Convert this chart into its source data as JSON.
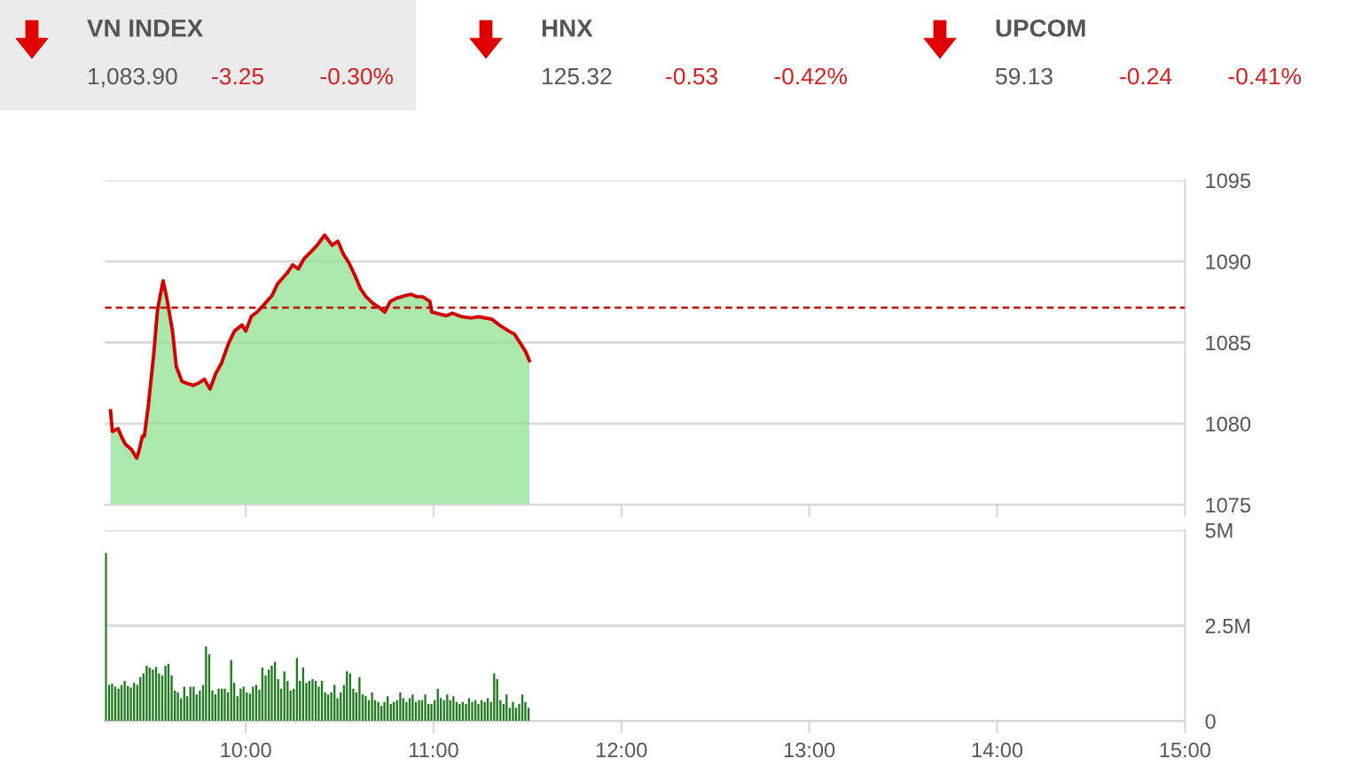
{
  "chart_data": [
    {
      "type": "other",
      "annotations": [
        "VN INDEX",
        "1,083.90",
        "-3.25",
        "-0.30%",
        "HNX",
        "125.32",
        "-0.53",
        "-0.42%",
        "UPCOM",
        "59.13",
        "-0.24",
        "-0.41%"
      ]
    },
    {
      "type": "line",
      "xlim": [
        9.25,
        15
      ],
      "xticks": [
        10,
        11,
        12,
        13,
        14,
        15
      ],
      "ylim": [
        1075,
        1095
      ],
      "yticks": [
        1075,
        1080,
        1085,
        1090,
        1095
      ],
      "grid": "y",
      "tick_labels": "y",
      "x": [
        9.28,
        9.29,
        9.32,
        9.34,
        9.36,
        9.39,
        9.42,
        9.43,
        9.45,
        9.46,
        9.48,
        9.51,
        9.53,
        9.56,
        9.58,
        9.61,
        9.63,
        9.66,
        9.68,
        9.72,
        9.75,
        9.78,
        9.81,
        9.84,
        9.87,
        9.91,
        9.94,
        9.98,
        10.0,
        10.03,
        10.06,
        10.09,
        10.14,
        10.17,
        10.22,
        10.25,
        10.28,
        10.31,
        10.35,
        10.38,
        10.42,
        10.46,
        10.49,
        10.52,
        10.55,
        10.58,
        10.61,
        10.64,
        10.68,
        10.71,
        10.74,
        10.77,
        10.8,
        10.85,
        10.88,
        10.91,
        10.94,
        10.98,
        10.99,
        11.04,
        11.07,
        11.1,
        11.15,
        11.2,
        11.24,
        11.31,
        11.35,
        11.4,
        11.43,
        11.46,
        11.49,
        11.51
      ],
      "series": [
        {
          "type": "area",
          "color": "#8fe08f",
          "values": [
            1080.8,
            1079.52,
            1079.7,
            1079.16,
            1078.72,
            1078.43,
            1077.88,
            1078.25,
            1079.23,
            1079.23,
            1080.98,
            1084.26,
            1086.99,
            1088.81,
            1087.72,
            1085.71,
            1083.53,
            1082.62,
            1082.51,
            1082.36,
            1082.51,
            1082.73,
            1082.14,
            1083.09,
            1083.71,
            1084.99,
            1085.71,
            1086.08,
            1085.71,
            1086.62,
            1086.88,
            1087.24,
            1087.9,
            1088.63,
            1089.28,
            1089.79,
            1089.54,
            1090.16,
            1090.63,
            1091.0,
            1091.62,
            1091.0,
            1091.25,
            1090.45,
            1089.9,
            1089.17,
            1088.34,
            1087.83,
            1087.39,
            1087.17,
            1086.88,
            1087.54,
            1087.72,
            1087.9,
            1087.97,
            1087.83,
            1087.83,
            1087.54,
            1086.88,
            1086.73,
            1086.66,
            1086.81,
            1086.59,
            1086.52,
            1086.59,
            1086.44,
            1086.08,
            1085.71,
            1085.53,
            1084.99,
            1084.44,
            1083.89
          ]
        },
        {
          "type": "line",
          "color": "#d40000",
          "values": [
            1080.8,
            1079.52,
            1079.7,
            1079.16,
            1078.72,
            1078.43,
            1077.88,
            1078.25,
            1079.23,
            1079.23,
            1080.98,
            1084.26,
            1086.99,
            1088.81,
            1087.72,
            1085.71,
            1083.53,
            1082.62,
            1082.51,
            1082.36,
            1082.51,
            1082.73,
            1082.14,
            1083.09,
            1083.71,
            1084.99,
            1085.71,
            1086.08,
            1085.71,
            1086.62,
            1086.88,
            1087.24,
            1087.9,
            1088.63,
            1089.28,
            1089.79,
            1089.54,
            1090.16,
            1090.63,
            1091.0,
            1091.62,
            1091.0,
            1091.25,
            1090.45,
            1089.9,
            1089.17,
            1088.34,
            1087.83,
            1087.39,
            1087.17,
            1086.88,
            1087.54,
            1087.72,
            1087.9,
            1087.97,
            1087.83,
            1087.83,
            1087.54,
            1086.88,
            1086.73,
            1086.66,
            1086.81,
            1086.59,
            1086.52,
            1086.59,
            1086.44,
            1086.08,
            1085.71,
            1085.53,
            1084.99,
            1084.44,
            1083.89
          ]
        }
      ],
      "ref_lines": [
        {
          "axis": "y",
          "value": 1087.15,
          "color": "#c00000",
          "line_style": "dashed"
        }
      ]
    },
    {
      "type": "bar",
      "xlim": [
        9.25,
        15
      ],
      "xticks": [
        {
          "value": 10,
          "label": "10:00"
        },
        {
          "value": 11,
          "label": "11:00"
        },
        {
          "value": 12,
          "label": "12:00"
        },
        {
          "value": 13,
          "label": "13:00"
        },
        {
          "value": 14,
          "label": "14:00"
        },
        {
          "value": 15,
          "label": "15:00"
        }
      ],
      "ylim": [
        0,
        5
      ],
      "yticks": [
        0,
        {
          "value": 2.5,
          "label": "2.5M"
        },
        {
          "value": 5,
          "label": "5M"
        }
      ],
      "grid": "y",
      "x": [
        9.25,
        9.267,
        9.283,
        9.3,
        9.317,
        9.333,
        9.35,
        9.367,
        9.383,
        9.4,
        9.417,
        9.433,
        9.45,
        9.467,
        9.483,
        9.5,
        9.517,
        9.533,
        9.55,
        9.567,
        9.583,
        9.6,
        9.617,
        9.633,
        9.65,
        9.667,
        9.683,
        9.7,
        9.717,
        9.733,
        9.75,
        9.767,
        9.783,
        9.8,
        9.817,
        9.833,
        9.85,
        9.867,
        9.883,
        9.9,
        9.917,
        9.933,
        9.95,
        9.967,
        9.983,
        10.0,
        10.017,
        10.033,
        10.05,
        10.067,
        10.083,
        10.1,
        10.117,
        10.133,
        10.15,
        10.167,
        10.183,
        10.2,
        10.217,
        10.233,
        10.25,
        10.267,
        10.283,
        10.3,
        10.317,
        10.333,
        10.35,
        10.367,
        10.383,
        10.4,
        10.417,
        10.433,
        10.45,
        10.467,
        10.483,
        10.5,
        10.517,
        10.533,
        10.55,
        10.567,
        10.583,
        10.6,
        10.617,
        10.633,
        10.65,
        10.667,
        10.683,
        10.7,
        10.717,
        10.733,
        10.75,
        10.767,
        10.783,
        10.8,
        10.817,
        10.833,
        10.85,
        10.867,
        10.883,
        10.9,
        10.917,
        10.933,
        10.95,
        10.967,
        10.983,
        11.0,
        11.017,
        11.033,
        11.05,
        11.067,
        11.083,
        11.1,
        11.117,
        11.133,
        11.15,
        11.167,
        11.183,
        11.2,
        11.217,
        11.233,
        11.25,
        11.267,
        11.283,
        11.3,
        11.317,
        11.333,
        11.35,
        11.367,
        11.383,
        11.4,
        11.417,
        11.433,
        11.45,
        11.467,
        11.483,
        11.5
      ],
      "series": [
        {
          "color": "#1e7b1e",
          "values": [
            4.4,
            0.95,
            0.98,
            0.9,
            0.85,
            0.95,
            1.05,
            0.92,
            0.88,
            1.0,
            0.95,
            1.15,
            1.25,
            1.45,
            1.4,
            1.35,
            1.42,
            1.25,
            1.2,
            1.45,
            1.5,
            1.2,
            0.8,
            0.75,
            0.6,
            0.9,
            0.65,
            0.9,
            0.9,
            0.7,
            0.8,
            0.95,
            1.95,
            1.75,
            0.8,
            0.7,
            0.85,
            0.85,
            0.85,
            0.75,
            1.6,
            1.0,
            0.65,
            0.85,
            0.9,
            0.75,
            0.72,
            0.9,
            0.95,
            0.82,
            1.4,
            1.2,
            1.35,
            1.45,
            1.55,
            1.1,
            0.85,
            1.3,
            1.05,
            0.8,
            0.85,
            1.65,
            1.05,
            1.4,
            1.0,
            1.05,
            1.1,
            1.05,
            0.9,
            1.05,
            0.75,
            0.7,
            0.75,
            0.95,
            0.6,
            0.75,
            0.95,
            1.3,
            1.25,
            0.85,
            0.75,
            1.15,
            0.7,
            0.65,
            0.55,
            0.75,
            0.55,
            0.5,
            0.4,
            0.5,
            0.65,
            0.45,
            0.5,
            0.55,
            0.75,
            0.6,
            0.5,
            0.6,
            0.7,
            0.5,
            0.55,
            0.55,
            0.7,
            0.45,
            0.45,
            0.55,
            0.85,
            0.6,
            0.55,
            0.7,
            0.55,
            0.65,
            0.5,
            0.45,
            0.5,
            0.45,
            0.6,
            0.5,
            0.55,
            0.45,
            0.55,
            0.5,
            0.6,
            0.5,
            1.25,
            1.1,
            0.55,
            0.45,
            0.7,
            0.35,
            0.5,
            0.35,
            0.45,
            0.7,
            0.5,
            0.35
          ]
        }
      ]
    }
  ]
}
